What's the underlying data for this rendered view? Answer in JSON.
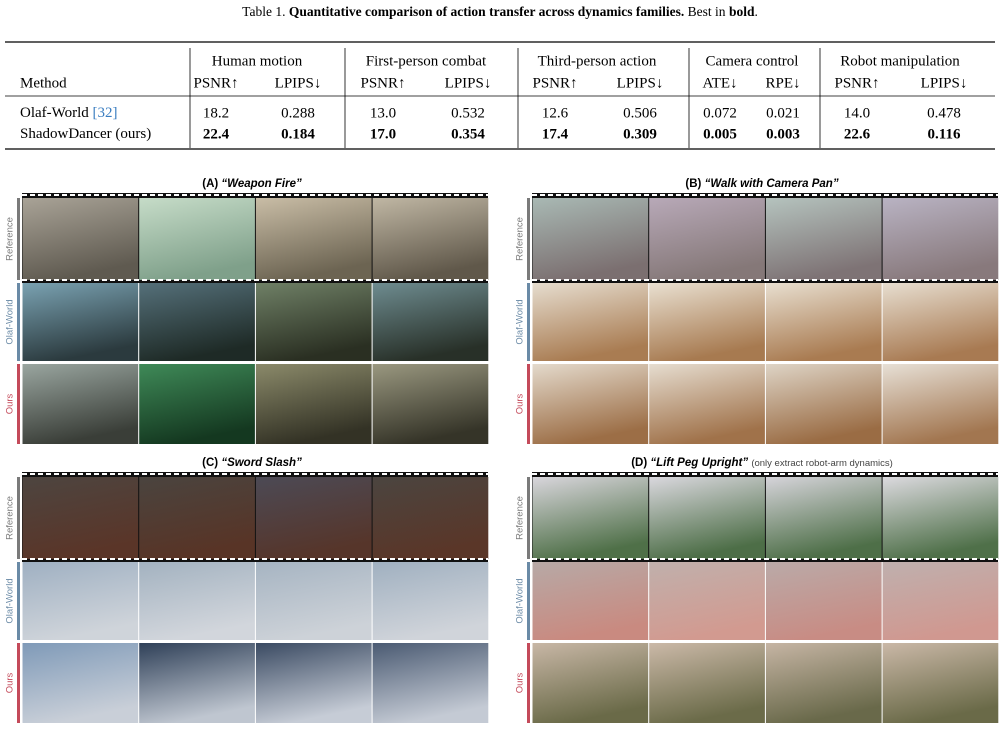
{
  "caption": {
    "label": "Table 1.",
    "title": "Quantitative comparison of action transfer across dynamics families.",
    "note": "Best in",
    "note_bold": "bold",
    "end": "."
  },
  "table": {
    "method_header": "Method",
    "groups": [
      {
        "name": "Human motion",
        "metrics": [
          "PSNR↑",
          "LPIPS↓"
        ]
      },
      {
        "name": "First-person combat",
        "metrics": [
          "PSNR↑",
          "LPIPS↓"
        ]
      },
      {
        "name": "Third-person action",
        "metrics": [
          "PSNR↑",
          "LPIPS↓"
        ]
      },
      {
        "name": "Camera control",
        "metrics": [
          "ATE↓",
          "RPE↓"
        ]
      },
      {
        "name": "Robot manipulation",
        "metrics": [
          "PSNR↑",
          "LPIPS↓"
        ]
      }
    ],
    "rows": [
      {
        "method": "Olaf-World",
        "cite": "[32]",
        "bold": false,
        "values": [
          "18.2",
          "0.288",
          "13.0",
          "0.532",
          "12.6",
          "0.506",
          "0.072",
          "0.021",
          "14.0",
          "0.478"
        ]
      },
      {
        "method": "ShadowDancer (ours)",
        "bold": true,
        "values": [
          "22.4",
          "0.184",
          "17.0",
          "0.354",
          "17.4",
          "0.309",
          "0.005",
          "0.003",
          "22.6",
          "0.116"
        ]
      }
    ]
  },
  "figure": {
    "panels": [
      {
        "letter": "(A)",
        "title": "“Weapon Fire”",
        "rows": [
          "Reference",
          "Olaf-World",
          "Ours"
        ]
      },
      {
        "letter": "(B)",
        "title": "“Walk with Camera Pan”",
        "rows": [
          "Reference",
          "Olaf-World",
          "Ours"
        ]
      },
      {
        "letter": "(C)",
        "title": "“Sword Slash”",
        "rows": [
          "Reference",
          "Olaf-World",
          "Ours"
        ]
      },
      {
        "letter": "(D)",
        "title": "“Lift Peg Upright”",
        "note": "(only extract robot-arm dynamics)",
        "rows": [
          "Reference",
          "Olaf-World",
          "Ours"
        ]
      }
    ]
  }
}
